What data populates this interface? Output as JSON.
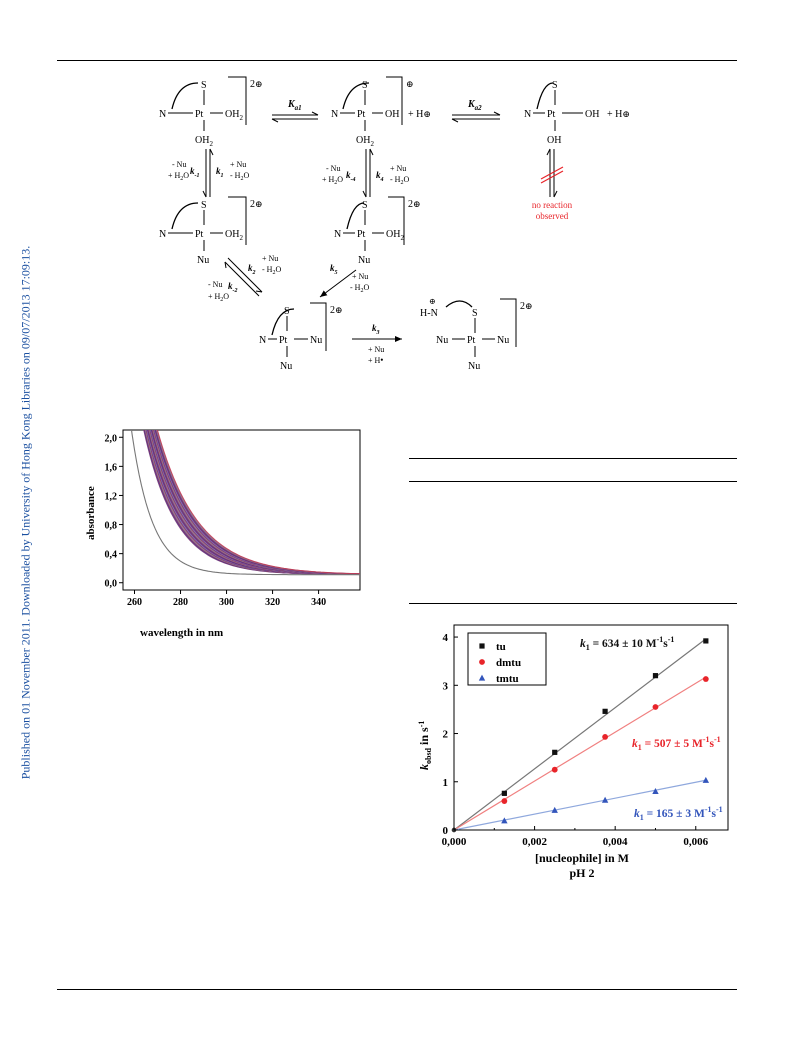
{
  "side_note": "Published on 01 November 2011. Downloaded by University of Hong Kong Libraries on 09/07/2013 17:09:13.",
  "scheme": {
    "charge_2plus": "2",
    "charge_plus": "⊕",
    "pt": "Pt",
    "n": "N",
    "s": "S",
    "nu": "Nu",
    "oh2": "OH",
    "oh": "OH",
    "h_plus": "+ H",
    "ka1": "K",
    "ka1_sub": "a1",
    "ka2": "K",
    "ka2_sub": "a2",
    "k1": "k",
    "k1_sub": "1",
    "km1": "k",
    "km1_sub": "-1",
    "k4": "k",
    "k4_sub": "4",
    "km4": "k",
    "km4_sub": "-4",
    "k2": "k",
    "k2_sub": "2",
    "km2": "k",
    "km2_sub": "-2",
    "k5": "k",
    "k5_sub": "5",
    "k3": "k",
    "k3_sub": "3",
    "minus_nu": "- Nu",
    "plus_nu": "+ Nu",
    "plus_h2o": "+ H",
    "minus_h2o": "- H",
    "h2o_tail": "O",
    "no_reaction_1": "no reaction",
    "no_reaction_2": "observed",
    "hn": "H",
    "k3_cond_1": "+ Nu",
    "k3_cond_2": "+ H"
  },
  "spectrum_chart": {
    "chart_data": {
      "type": "line",
      "xlabel": "wavelength in nm",
      "ylabel": "absorbance",
      "x_ticks": [
        260,
        280,
        300,
        320,
        340
      ],
      "y_ticks": [
        "0,0",
        "0,4",
        "0,8",
        "1,2",
        "1,6",
        "2,0"
      ],
      "xlim": [
        255,
        358
      ],
      "ylim": [
        -0.1,
        2.1
      ],
      "series_count": 30,
      "colors": [
        "#7a2a6a",
        "#3a3a9a",
        "#a02040",
        "#6b5fa8",
        "#8a8a8a",
        "#c23050",
        "#404090",
        "#9a7ab8"
      ]
    }
  },
  "kobs_chart": {
    "chart_data": {
      "type": "scatter",
      "xlabel": "[nucleophile] in M",
      "xlabel_2": "pH 2",
      "ylabel": "k",
      "ylabel_sub": "obsd",
      "ylabel_tail": " in s",
      "ylabel_sup": "-1",
      "x_ticks": [
        "0,000",
        "0,002",
        "0,004",
        "0,006"
      ],
      "y_ticks": [
        "0",
        "1",
        "2",
        "3",
        "4"
      ],
      "xlim": [
        0,
        0.0068
      ],
      "ylim": [
        0,
        4.25
      ],
      "series": [
        {
          "name": "tu",
          "color": "#111111",
          "marker": "square",
          "x": [
            0.00125,
            0.0025,
            0.00375,
            0.005,
            0.00625
          ],
          "y": [
            0.76,
            1.61,
            2.46,
            3.2,
            3.92
          ],
          "fit_slope": 634,
          "annotation": "= 634 ± 10 M",
          "annotation_color": "#111111"
        },
        {
          "name": "dmtu",
          "color": "#e8242a",
          "marker": "circle",
          "x": [
            0.00125,
            0.0025,
            0.00375,
            0.005,
            0.00625
          ],
          "y": [
            0.6,
            1.25,
            1.93,
            2.55,
            3.13
          ],
          "fit_slope": 507,
          "annotation": "= 507 ± 5 M",
          "annotation_color": "#e8242a"
        },
        {
          "name": "tmtu",
          "color": "#3355bb",
          "marker": "triangle",
          "x": [
            0.00125,
            0.0025,
            0.00375,
            0.005,
            0.00625
          ],
          "y": [
            0.19,
            0.41,
            0.62,
            0.8,
            1.03
          ],
          "fit_slope": 165,
          "annotation": "= 165 ± 3 M",
          "annotation_color": "#3355bb"
        }
      ],
      "annotation_k": "k",
      "annotation_sub": "1",
      "annotation_sup1": "-1",
      "annotation_s": "s",
      "annotation_sup2": "-1"
    }
  }
}
